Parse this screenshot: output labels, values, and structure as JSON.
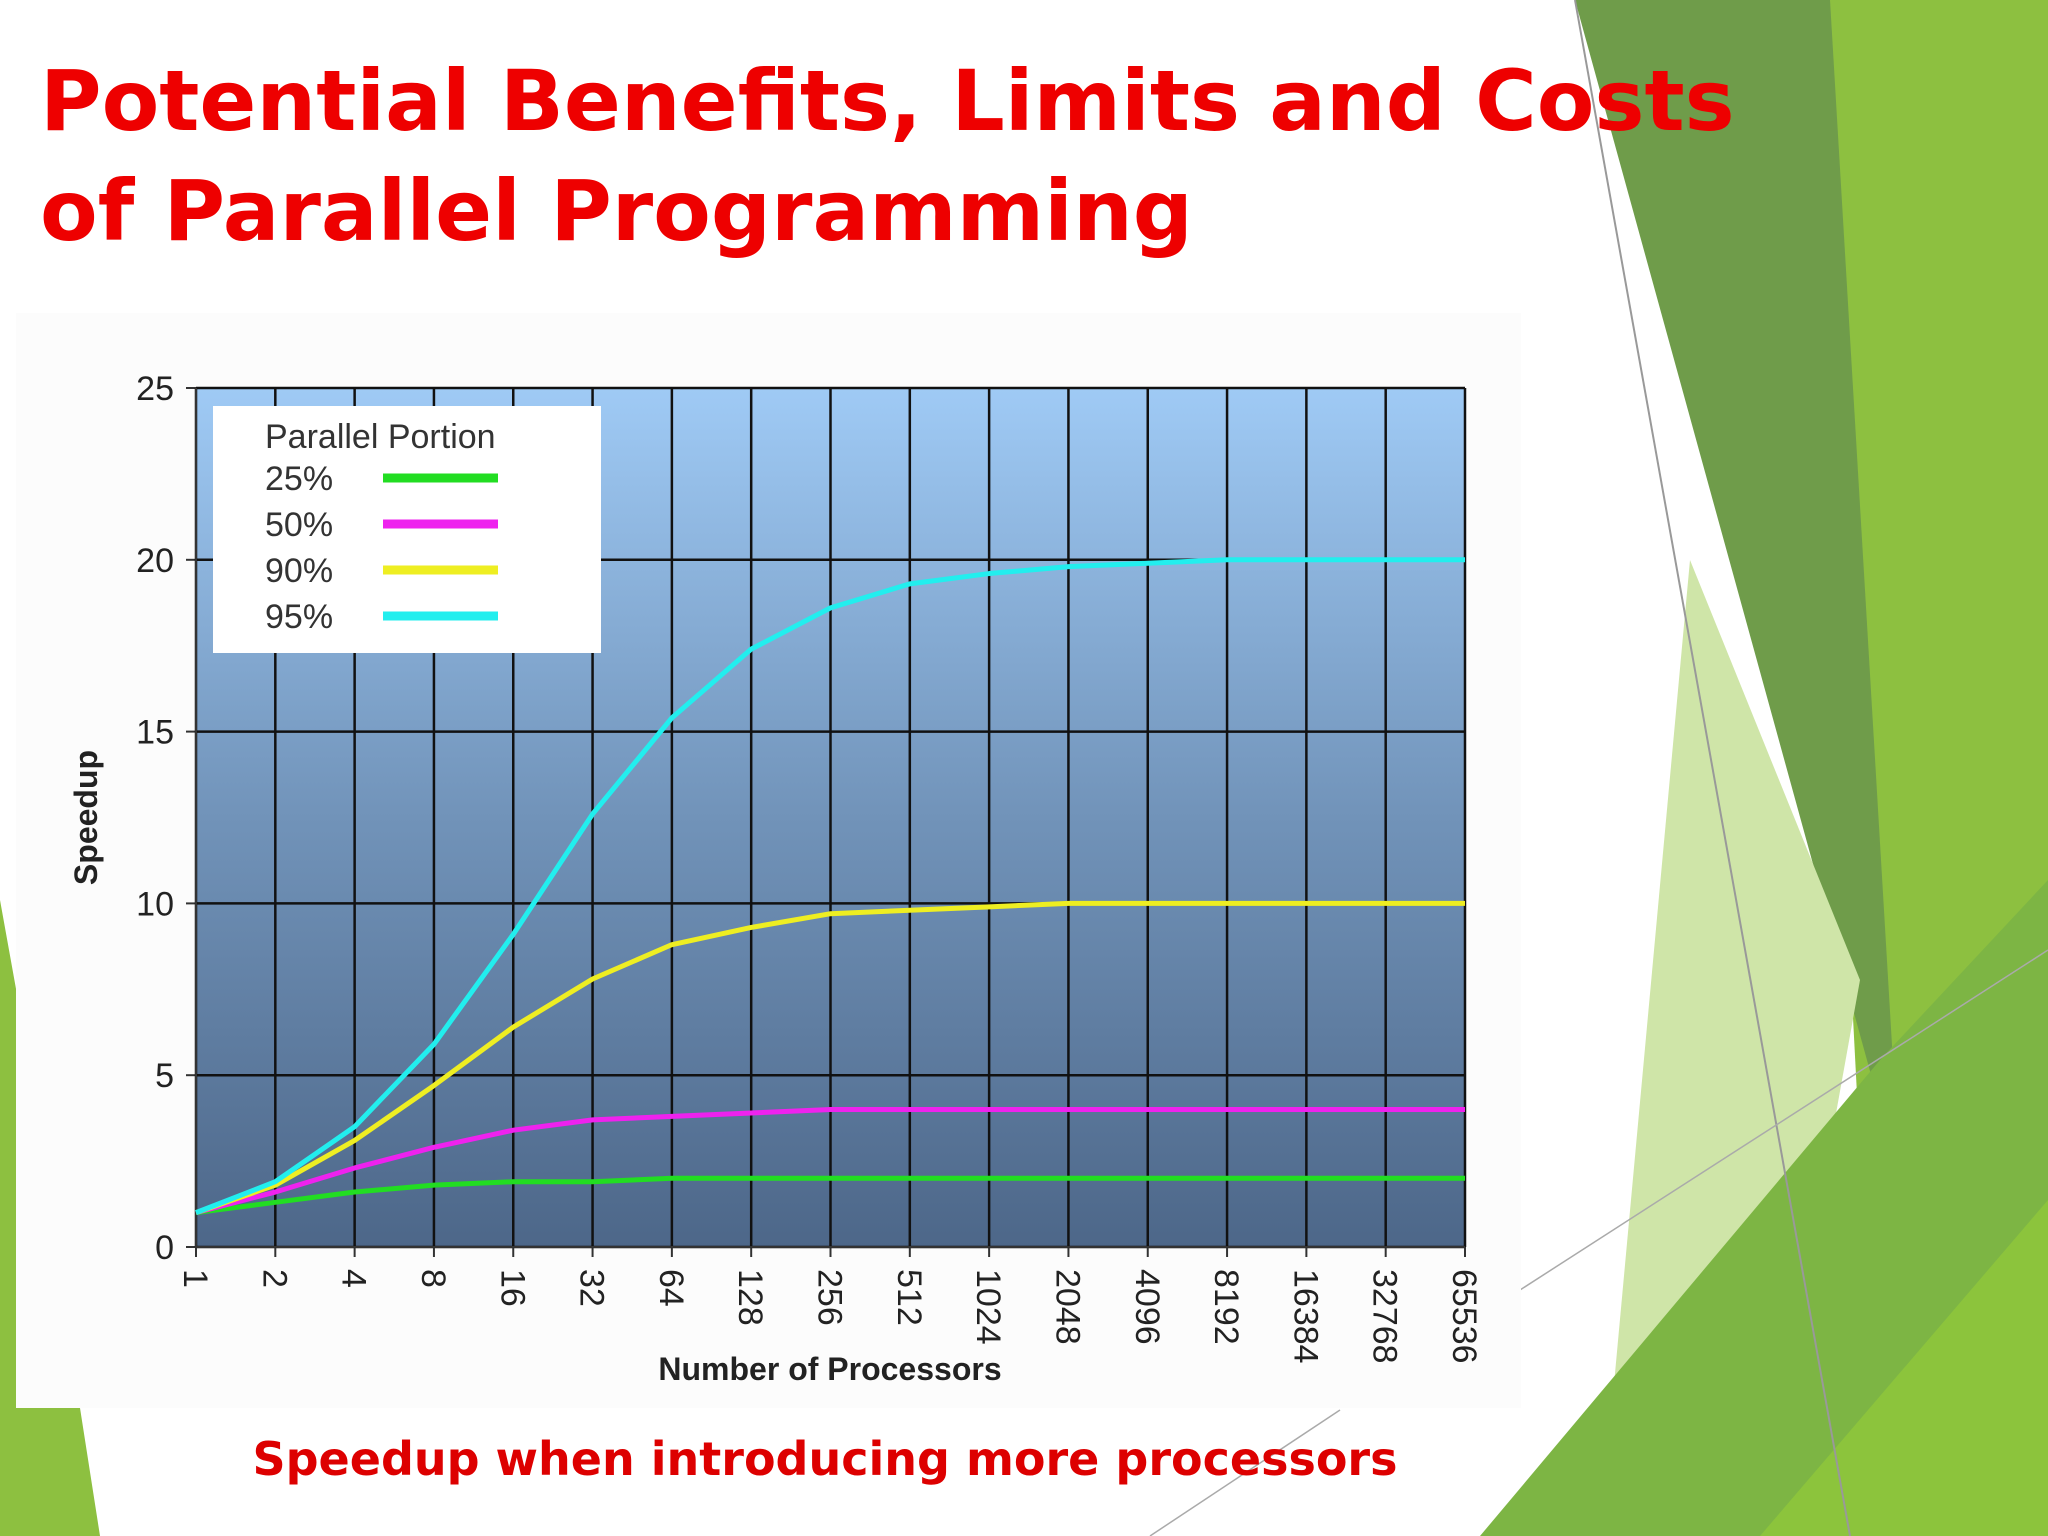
{
  "slide": {
    "title_lines": [
      "Potential Benefits, Limits and Costs",
      "of Parallel Programming"
    ],
    "caption": "Speedup when introducing more processors"
  },
  "chart_data": {
    "type": "line",
    "x": [
      1,
      2,
      4,
      8,
      16,
      32,
      64,
      128,
      256,
      512,
      1024,
      2048,
      4096,
      8192,
      16384,
      32768,
      65536
    ],
    "xscale": "log2",
    "xlim": [
      1,
      65536
    ],
    "xticks": [
      1,
      2,
      4,
      8,
      16,
      32,
      64,
      128,
      256,
      512,
      1024,
      2048,
      4096,
      8192,
      16384,
      32768,
      65536
    ],
    "ylim": [
      0,
      25
    ],
    "yticks": [
      0,
      5,
      10,
      15,
      20,
      25
    ],
    "xlabel": "Number of Processors",
    "ylabel": "Speedup",
    "grid": true,
    "legend_title": "Parallel Portion",
    "legend": "upper left",
    "series": [
      {
        "name": "25%",
        "color": "#22dd22",
        "values": [
          1,
          1.3,
          1.6,
          1.8,
          1.9,
          1.9,
          2,
          2,
          2,
          2,
          2,
          2,
          2,
          2,
          2,
          2,
          2
        ]
      },
      {
        "name": "50%",
        "color": "#ee22ee",
        "values": [
          1,
          1.6,
          2.3,
          2.9,
          3.4,
          3.7,
          3.8,
          3.9,
          4,
          4,
          4,
          4,
          4,
          4,
          4,
          4,
          4
        ]
      },
      {
        "name": "90%",
        "color": "#eeee22",
        "values": [
          1,
          1.8,
          3.1,
          4.7,
          6.4,
          7.8,
          8.8,
          9.3,
          9.7,
          9.8,
          9.9,
          10,
          10,
          10,
          10,
          10,
          10
        ]
      },
      {
        "name": "95%",
        "color": "#22eeee",
        "values": [
          1,
          1.9,
          3.5,
          5.9,
          9.1,
          12.6,
          15.4,
          17.4,
          18.6,
          19.3,
          19.6,
          19.8,
          19.9,
          20,
          20,
          20,
          20
        ]
      }
    ]
  }
}
